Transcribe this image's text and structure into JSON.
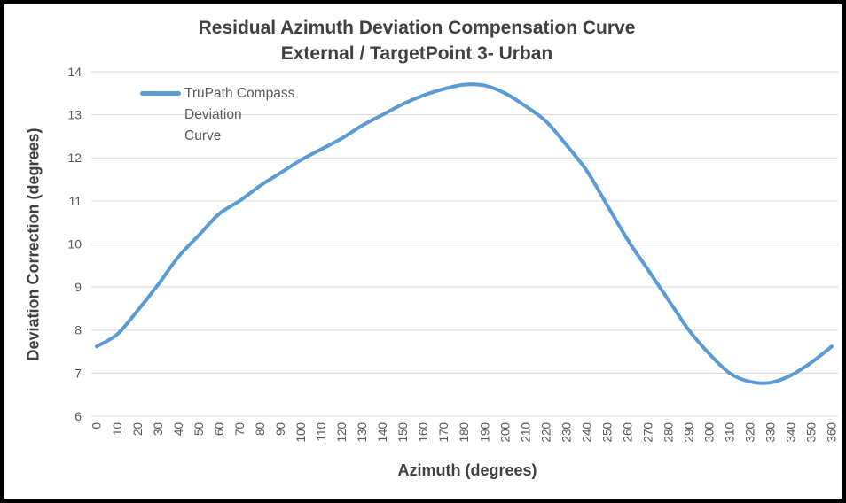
{
  "colors": {
    "curve": "#5B9BD5",
    "grid": "#D9D9D9",
    "title": "#404040",
    "tick_label": "#595959",
    "frame_border": "#000000",
    "background": "#FFFFFF"
  },
  "title": {
    "line1": "Residual Azimuth Deviation Compensation Curve",
    "line2": "External / TargetPoint 3- Urban"
  },
  "legend": {
    "lines": [
      "TruPath Compass",
      "Deviation",
      "Curve"
    ],
    "position": "top-left-overlay"
  },
  "chart_data": {
    "type": "line",
    "title": "Residual Azimuth Deviation Compensation Curve External / TargetPoint 3- Urban",
    "xlabel": "Azimuth (degrees)",
    "ylabel": "Deviation Correction (degrees)",
    "xlim": [
      0,
      360
    ],
    "ylim": [
      6,
      14
    ],
    "grid": "horizontal-only",
    "x_ticks": [
      0,
      10,
      20,
      30,
      40,
      50,
      60,
      70,
      80,
      90,
      100,
      110,
      120,
      130,
      140,
      150,
      160,
      170,
      180,
      190,
      200,
      210,
      220,
      230,
      240,
      250,
      260,
      270,
      280,
      290,
      300,
      310,
      320,
      330,
      340,
      350,
      360
    ],
    "x_tick_labels_rotation_deg": -90,
    "y_ticks": [
      6,
      7,
      8,
      9,
      10,
      11,
      12,
      13,
      14
    ],
    "series": [
      {
        "name": "TruPath Compass Deviation Curve",
        "color": "#5B9BD5",
        "x": [
          0,
          10,
          20,
          30,
          40,
          50,
          60,
          70,
          80,
          90,
          100,
          110,
          120,
          130,
          140,
          150,
          160,
          170,
          180,
          190,
          200,
          210,
          220,
          230,
          240,
          250,
          260,
          270,
          280,
          290,
          300,
          310,
          320,
          330,
          340,
          350,
          360
        ],
        "y": [
          7.62,
          7.9,
          8.45,
          9.05,
          9.7,
          10.2,
          10.7,
          11.0,
          11.35,
          11.65,
          11.95,
          12.2,
          12.45,
          12.75,
          13.0,
          13.25,
          13.45,
          13.6,
          13.7,
          13.68,
          13.5,
          13.2,
          12.85,
          12.3,
          11.7,
          10.9,
          10.1,
          9.4,
          8.7,
          8.0,
          7.45,
          7.0,
          6.8,
          6.78,
          6.95,
          7.25,
          7.62
        ]
      }
    ],
    "annotations": {
      "max_point": {
        "x": 180,
        "y": 13.7
      },
      "min_point": {
        "x": 325,
        "y": 6.78
      }
    }
  }
}
